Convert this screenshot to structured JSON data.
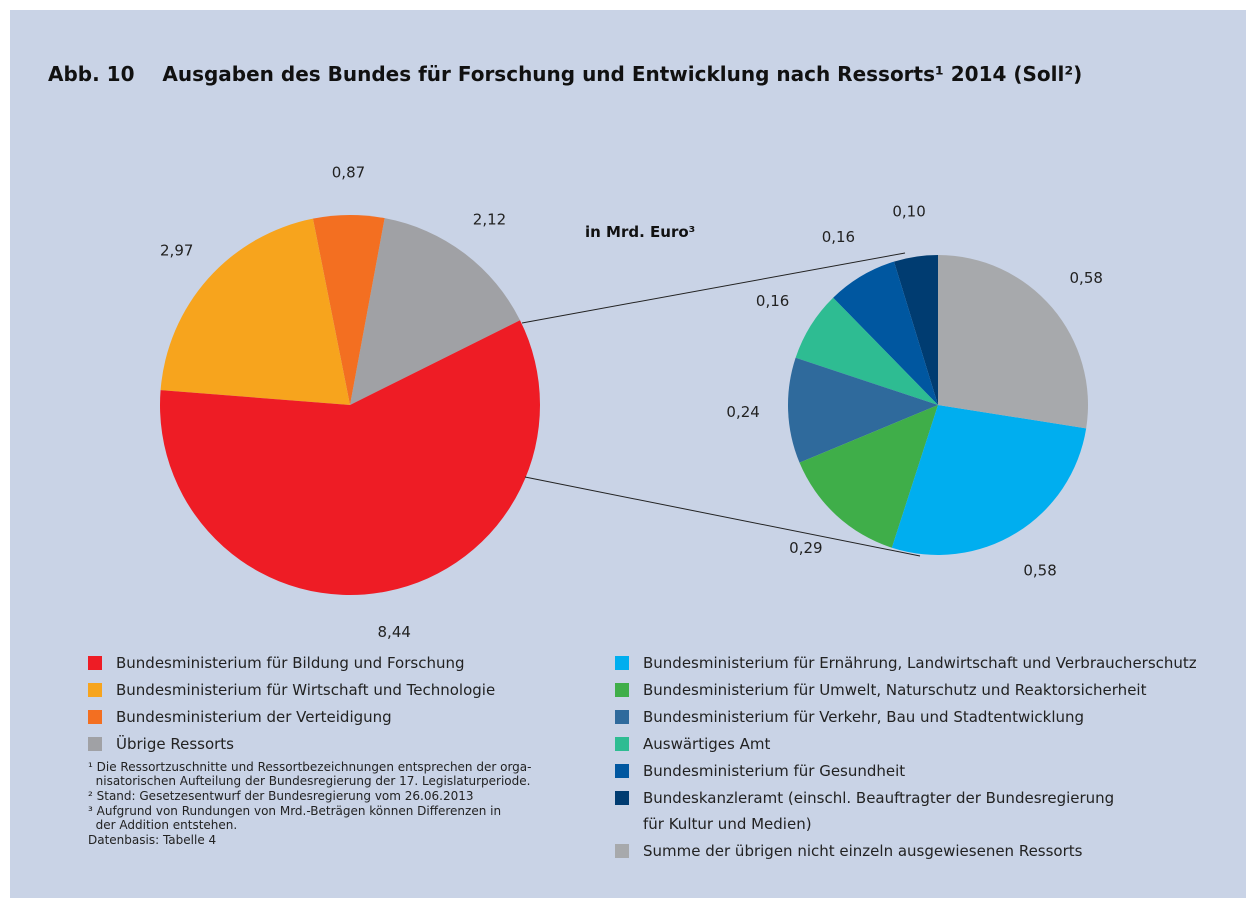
{
  "title": "Abb. 10    Ausgaben des Bundes für Forschung und Entwicklung nach Ressorts¹ 2014 (Soll²)",
  "unit_label": "in Mrd. Euro³",
  "footnotes": [
    "¹ Die Ressortzuschnitte und Ressortbezeichnungen entsprechen der orga-\n  nisatorischen Aufteilung der Bundesregierung der 17. Legislaturperiode.",
    "² Stand: Gesetzesentwurf der Bundesregierung vom 26.06.2013",
    "³ Aufgrund von Rundungen von Mrd.-Beträgen können Differenzen in\n  der Addition entstehen.",
    "Datenbasis: Tabelle 4"
  ],
  "chart_data": [
    {
      "type": "pie",
      "categories": [
        "Bundesministerium für Bildung und Forschung",
        "Bundesministerium für Wirtschaft und Technologie",
        "Bundesministerium der Verteidigung",
        "Übrige Ressorts"
      ],
      "values": [
        8.44,
        2.97,
        0.87,
        2.12
      ],
      "value_labels": [
        "8,44",
        "2,97",
        "0,87",
        "2,12"
      ],
      "colors": [
        "#ee1c25",
        "#f7a41d",
        "#f36f21",
        "#a0a1a5"
      ]
    },
    {
      "type": "pie",
      "categories": [
        "Summe der übrigen nicht einzeln ausgewiesenen Ressorts",
        "Bundesministerium für Ernährung, Landwirtschaft und Verbraucherschutz",
        "Bundesministerium für Umwelt, Naturschutz und Reaktorsicherheit",
        "Bundesministerium für Verkehr, Bau und Stadtentwicklung",
        "Auswärtiges Amt",
        "Bundesministerium für Gesundheit",
        "Bundeskanzleramt (einschl. Beauftragter der Bundesregierung\nfür Kultur und Medien)"
      ],
      "values": [
        0.58,
        0.58,
        0.29,
        0.24,
        0.16,
        0.16,
        0.1
      ],
      "value_labels": [
        "0,58",
        "0,58",
        "0,29",
        "0,24",
        "0,16",
        "0,16",
        "0,10"
      ],
      "colors": [
        "#a7a9ac",
        "#00aeef",
        "#3fae49",
        "#2f6a9c",
        "#2ebc92",
        "#0057a0",
        "#003c71"
      ]
    }
  ]
}
